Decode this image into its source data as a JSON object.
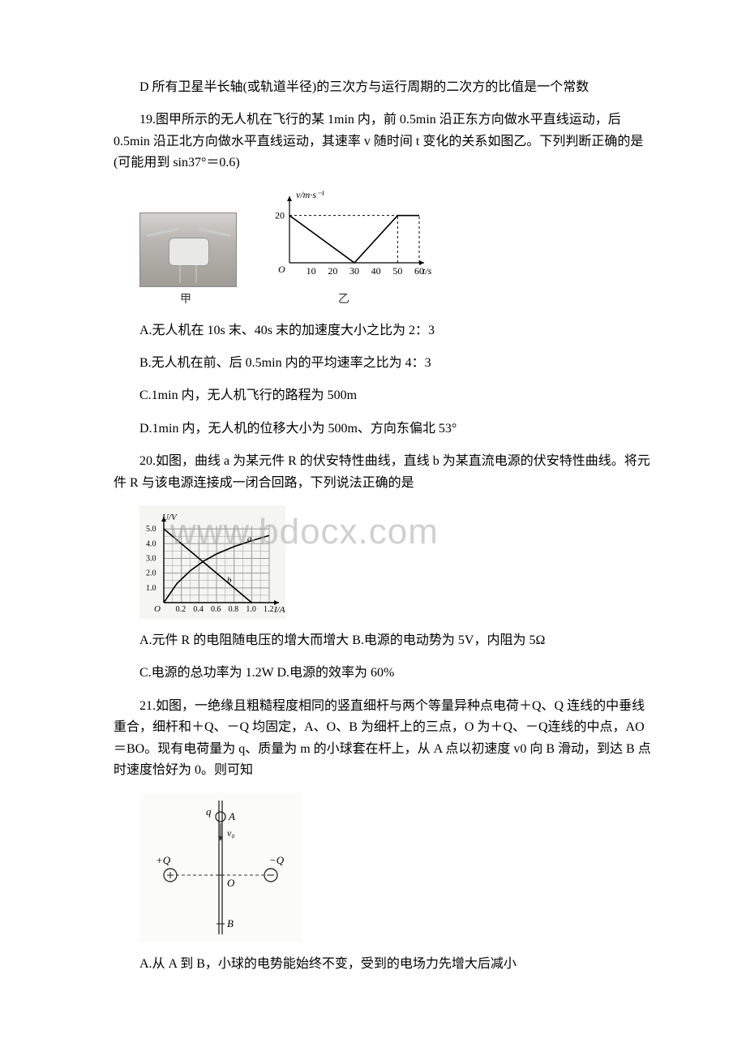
{
  "watermark": "www.bdocx.com",
  "line_D": "D 所有卫星半长轴(或轨道半径)的三次方与运行周期的二次方的比值是一个常数",
  "q19": {
    "stem": "19.图甲所示的无人机在飞行的某 1min 内，前 0.5min 沿正东方向做水平直线运动，后 0.5min 沿正北方向做水平直线运动，其速率 v 随时间 t 变化的关系如图乙。下列判断正确的是(可能用到 sin37°＝0.6)",
    "opt_a": "A.无人机在 10s 末、40s 末的加速度大小之比为 2：3",
    "opt_b": "B.无人机在前、后 0.5min 内的平均速率之比为 4：3",
    "opt_c": "C.1min 内，无人机飞行的路程为 500m",
    "opt_d": "D.1min 内，无人机的位移大小为 500m、方向东偏北 53°",
    "caption_left": "甲",
    "caption_right": "乙",
    "chart": {
      "type": "line",
      "x_label": "t/s",
      "y_label": "v/m·s⁻¹",
      "x_ticks": [
        10,
        20,
        30,
        40,
        50,
        60
      ],
      "y_ticks": [
        20
      ],
      "points": [
        [
          0,
          20
        ],
        [
          30,
          0
        ],
        [
          50,
          20
        ],
        [
          60,
          20
        ]
      ],
      "dash_segments": [
        [
          [
            0,
            20
          ],
          [
            50,
            20
          ]
        ],
        [
          [
            50,
            0
          ],
          [
            50,
            20
          ]
        ],
        [
          [
            60,
            0
          ],
          [
            60,
            20
          ]
        ]
      ],
      "axis_color": "#000000",
      "line_color": "#000000",
      "dash_color": "#000000",
      "font_size": 12
    }
  },
  "q20": {
    "stem": "20.如图，曲线 a 为某元件 R 的伏安特性曲线，直线 b 为某直流电源的伏安特性曲线。将元件 R 与该电源连接成一闭合回路，下列说法正确的是",
    "opt_a": "A.元件 R 的电阻随电压的增大而增大 B.电源的电动势为 5V，内阻为 5Ω",
    "opt_b": "C.电源的总功率为 1.2W D.电源的效率为 60%",
    "chart": {
      "type": "line",
      "x_label": "I/A",
      "y_label": "U/V",
      "x_ticks": [
        0.2,
        0.4,
        0.6,
        0.8,
        1.0,
        1.2
      ],
      "y_ticks": [
        1.0,
        2.0,
        3.0,
        4.0,
        5.0
      ],
      "line_b": [
        [
          0,
          5
        ],
        [
          1.0,
          0
        ]
      ],
      "curve_a": [
        [
          0,
          0
        ],
        [
          0.15,
          1.3
        ],
        [
          0.3,
          2.15
        ],
        [
          0.45,
          2.8
        ],
        [
          0.6,
          3.3
        ],
        [
          0.8,
          3.8
        ],
        [
          1.0,
          4.2
        ],
        [
          1.2,
          4.55
        ]
      ],
      "label_a": "a",
      "label_b": "b",
      "label_a_pos": [
        0.95,
        4.15
      ],
      "label_b_pos": [
        0.72,
        1.35
      ],
      "grid_color": "#9a9a9a",
      "axis_color": "#000000",
      "line_color": "#000000",
      "font_size": 11,
      "bg": "#f5f5f2"
    }
  },
  "q21": {
    "stem": "21.如图，一绝缘且粗糙程度相同的竖直细杆与两个等量异种点电荷＋Q、Q 连线的中垂线重合，细杆和＋Q、－Q 均固定，A、O、B 为细杆上的三点，O 为＋Q、－Q连线的中点，AO＝BO。现有电荷量为 q、质量为 m 的小球套在杆上，从 A 点以初速度 v0 向 B 滑动，到达 B 点时速度恰好为 0。则可知",
    "opt_a": "A.从 A 到 B，小球的电势能始终不变，受到的电场力先增大后减小",
    "labels": {
      "q": "q",
      "A": "A",
      "v0": "v₀",
      "plusQ": "+Q",
      "minusQ": "−Q",
      "O": "O",
      "B": "B",
      "plus_symbol": "⊕",
      "minus_symbol": "⊖"
    }
  }
}
